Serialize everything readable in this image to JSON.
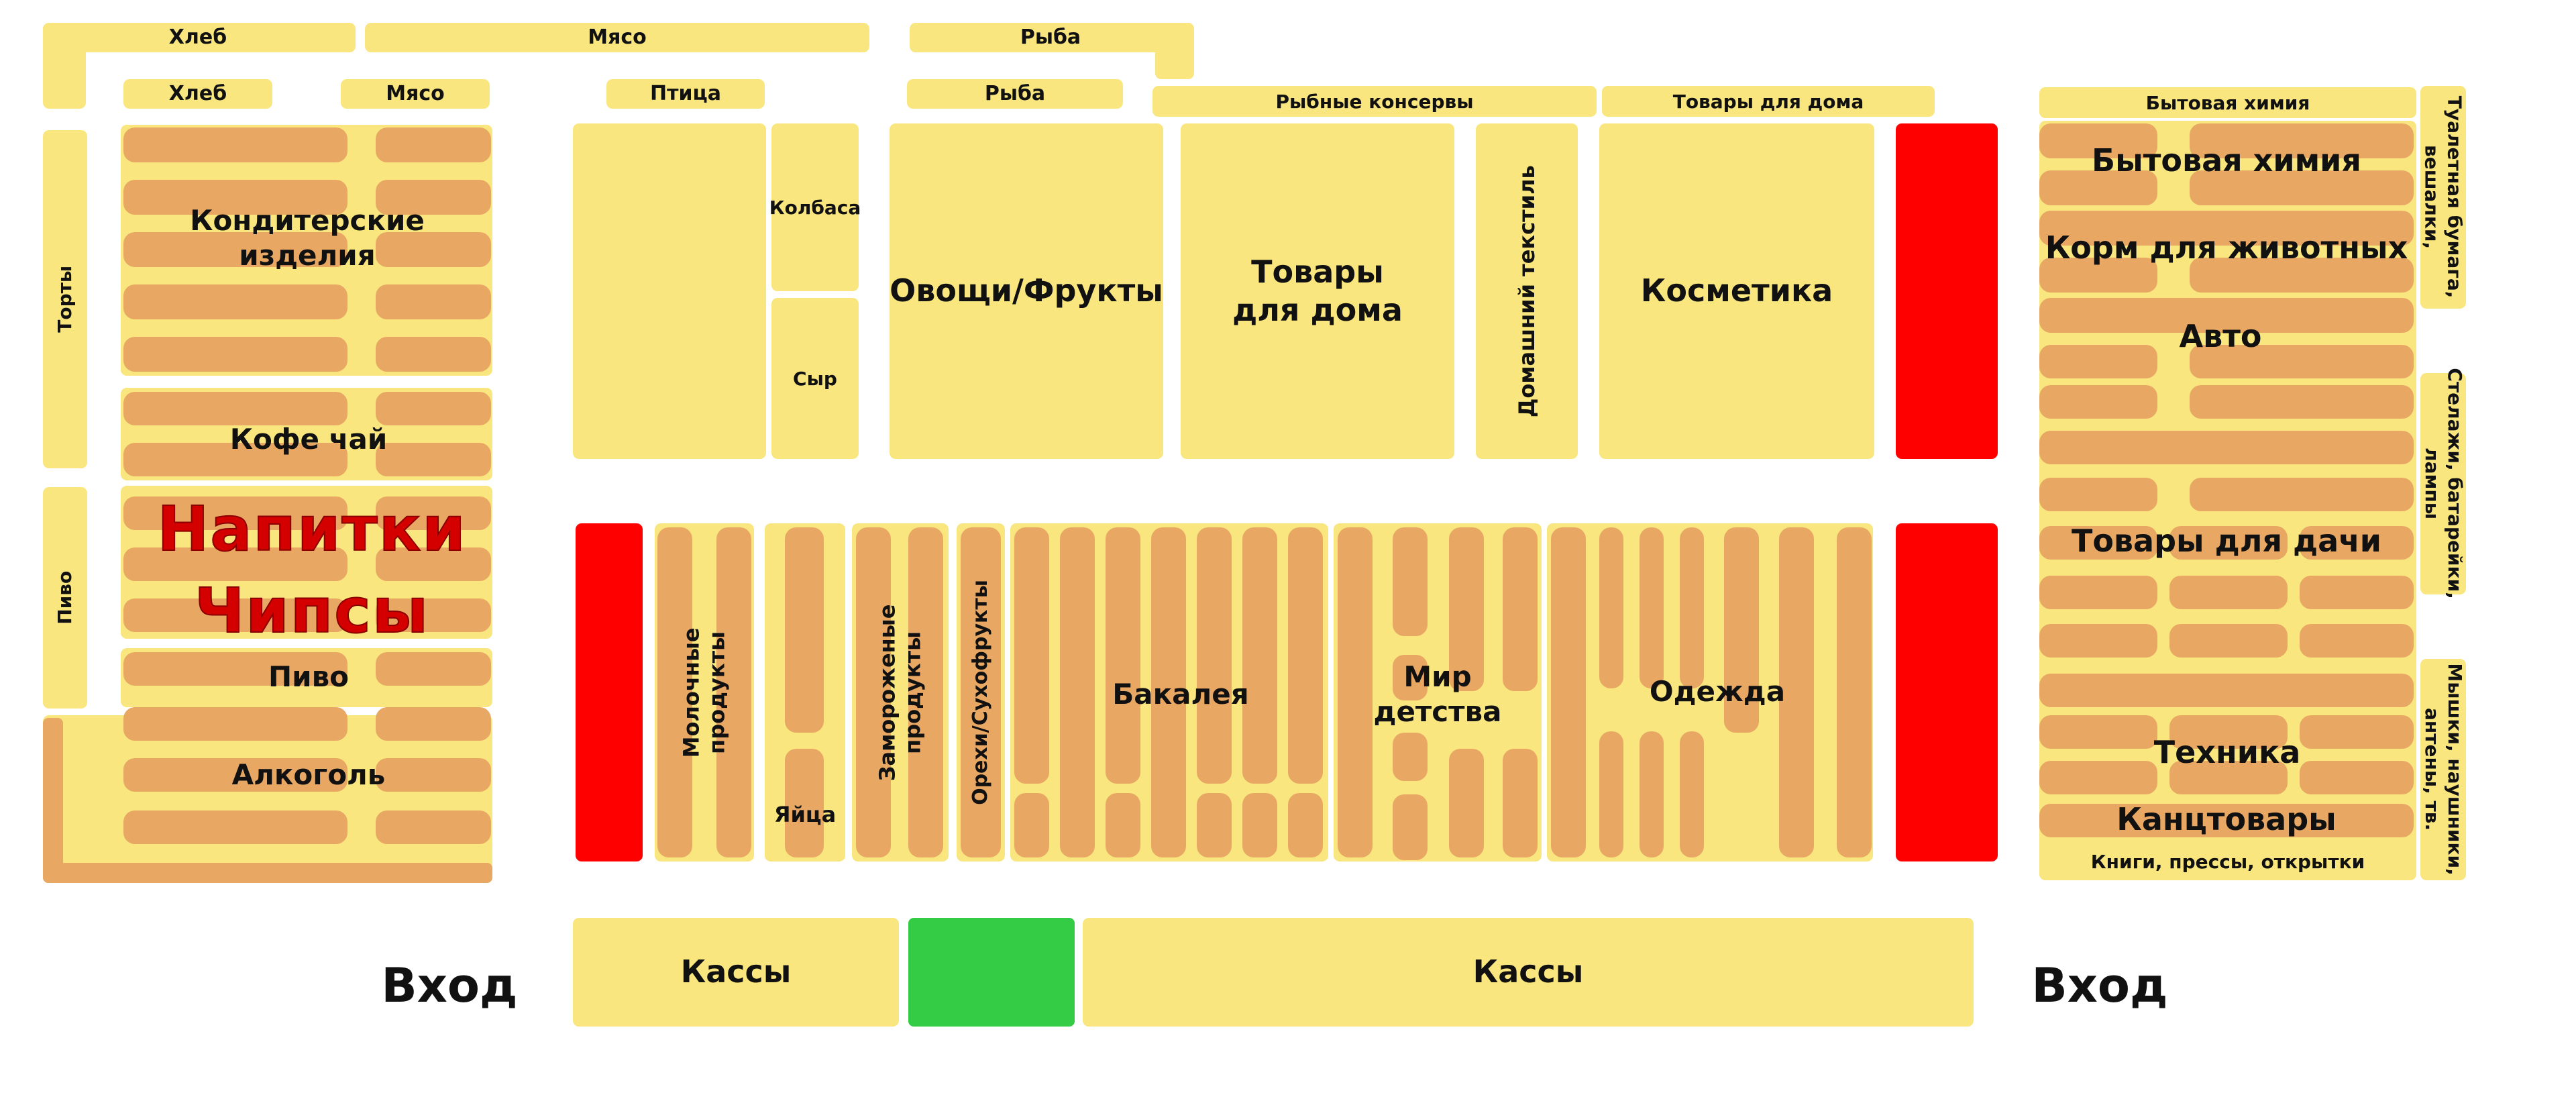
{
  "legend": {
    "zone_color": "#f9e67e",
    "shelf_color": "#e8a864",
    "closed_color": "#ff0000",
    "highlight_color": "#33cc44"
  },
  "top_sections": {
    "bread_outer": "Хлеб",
    "meat_outer": "Мясо",
    "fish_outer": "Рыба",
    "bread_inner": "Хлеб",
    "meat_inner": "Мясо",
    "poultry": "Птица",
    "fish_inner": "Рыба",
    "fish_canned": "Рыбные консервы",
    "household_top": "Товары для дома"
  },
  "left_block": {
    "cakes": "Торты",
    "beer_side": "Пиво",
    "confectionery": "Кондитерские\nизделия",
    "coffee_tea": "Кофе чай",
    "drinks": "Напитки",
    "chips": "Чипсы",
    "beer": "Пиво",
    "alcohol": "Алкоголь"
  },
  "center_top": {
    "sausage": "Колбаса",
    "cheese": "Сыр",
    "vegetables_fruits": "Овощи/Фрукты",
    "household_goods": "Товары\nдля дома",
    "home_textile": "Домашний текстиль",
    "cosmetics": "Косметика"
  },
  "center_bottom": {
    "dairy": "Молочные\nпродукты",
    "eggs": "Яйца",
    "frozen": "Замороженые\nпродукты",
    "nuts_dried": "Орехи/Сухофрукты",
    "grocery": "Бакалея",
    "kids": "Мир детства",
    "clothes": "Одежда"
  },
  "right_block": {
    "chemistry_top": "Бытовая химия",
    "chemistry": "Бытовая химия",
    "pet_food": "Корм для животных",
    "auto": "Авто",
    "garden": "Товары для дачи",
    "electronics": "Техника",
    "stationery": "Канцтовары",
    "books": "Книги, прессы, открытки",
    "side_toilet": "Туалетная бумага,\nвешалки,",
    "side_racks": "Стелажи, батарейки,\nлампы",
    "side_mice": "Мышки, наушники,\nантены, тв."
  },
  "bottom": {
    "checkout_left": "Кассы",
    "checkout_right": "Кассы",
    "entrance_left": "Вход",
    "entrance_right": "Вход"
  }
}
